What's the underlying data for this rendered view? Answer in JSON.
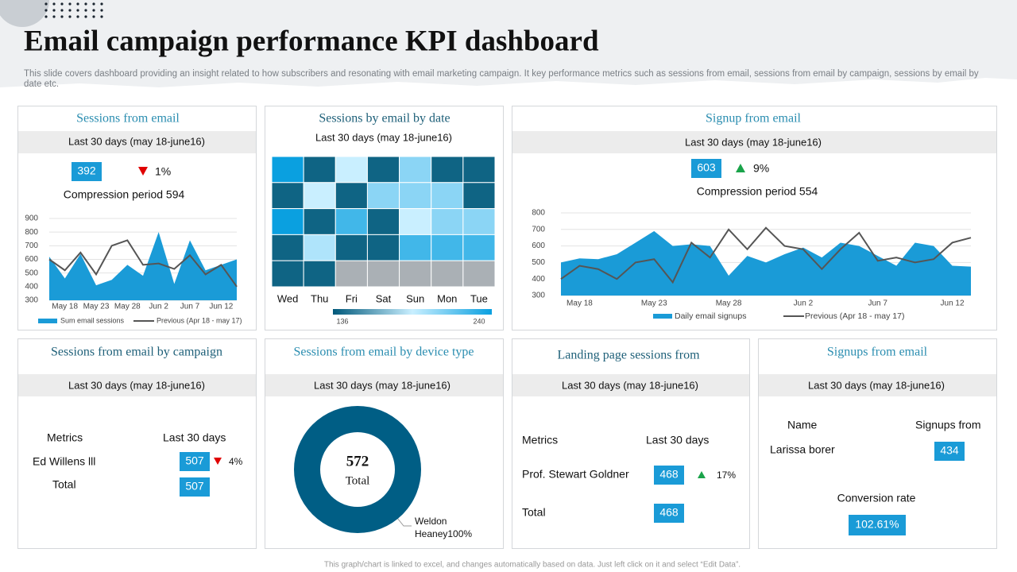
{
  "header": {
    "title": "Email campaign performance KPI dashboard",
    "subtitle": "This slide covers dashboard providing an insight related to how subscribers and resonating with email marketing campaign. It key performance metrics such as sessions from email, sessions from email by campaign, sessions by email by date etc."
  },
  "panels": [
    {
      "title": "Sessions from email",
      "period": "Last 30 days (may 18-june16)",
      "value": "392",
      "change": "1%",
      "direction": "down",
      "note": "Compression period 594",
      "chart": {
        "type": "area-line",
        "categories": [
          null,
          "May 18",
          null,
          "May 23",
          null,
          "May 28",
          null,
          "Jun 2",
          null,
          "Jun 7",
          null,
          "Jun 12",
          null
        ],
        "series": [
          {
            "name": "Sum email sessions",
            "color": "#1a9bd7",
            "kind": "area",
            "values": [
              620,
              460,
              640,
              410,
              450,
              560,
              480,
              800,
              420,
              740,
              520,
              560,
              600
            ]
          },
          {
            "name": "Previous (Apr 18 - may 17)",
            "color": "#555555",
            "kind": "line",
            "values": [
              600,
              520,
              650,
              490,
              700,
              740,
              560,
              570,
              530,
              630,
              490,
              560,
              400
            ]
          }
        ],
        "ylim": [
          300,
          900
        ],
        "yticks": [
          300,
          400,
          500,
          600,
          700,
          800,
          900
        ],
        "grid": true
      }
    },
    {
      "title": "Sessions by email by date",
      "period": "Last 30 days (may 18-june16)",
      "chart": {
        "type": "heatmap",
        "categories": [
          "Wed",
          "Thu",
          "Fri",
          "Sat",
          "Sun",
          "Mon",
          "Tue"
        ],
        "rows": [
          [
            240,
            140,
            188,
            140,
            205,
            140,
            140
          ],
          [
            140,
            188,
            140,
            205,
            205,
            205,
            140
          ],
          [
            240,
            140,
            225,
            140,
            188,
            205,
            205
          ],
          [
            140,
            195,
            140,
            140,
            225,
            225,
            225
          ],
          [
            140,
            140,
            null,
            null,
            null,
            null,
            null
          ]
        ],
        "clim": [
          136,
          240
        ],
        "colors": [
          "#00587a",
          "#c9efff",
          "#0aa0e0"
        ],
        "null_color": "#aab0b5"
      }
    },
    {
      "title": "Signup from email",
      "period": "Last 30 days (may 18-june16)",
      "value": "603",
      "change": "9%",
      "direction": "up",
      "note": "Compression period 554",
      "chart": {
        "type": "area-line",
        "categories": [
          null,
          "May 18",
          null,
          null,
          null,
          "May 23",
          null,
          null,
          null,
          "May 28",
          null,
          null,
          null,
          "Jun 2",
          null,
          null,
          null,
          "Jun 7",
          null,
          null,
          null,
          "Jun 12",
          null
        ],
        "series": [
          {
            "name": "Daily email signups",
            "color": "#1a9bd7",
            "kind": "area",
            "values": [
              500,
              525,
              520,
              550,
              620,
              690,
              600,
              610,
              600,
              420,
              540,
              500,
              550,
              590,
              530,
              620,
              600,
              540,
              480,
              620,
              600,
              480,
              475
            ]
          },
          {
            "name": "Previous (Apr 18 - may 17)",
            "color": "#555555",
            "kind": "line",
            "values": [
              400,
              480,
              460,
              400,
              500,
              520,
              380,
              620,
              530,
              700,
              580,
              710,
              600,
              580,
              460,
              580,
              680,
              510,
              530,
              500,
              520,
              620,
              650
            ]
          }
        ],
        "ylim": [
          300,
          800
        ],
        "yticks": [
          300,
          400,
          500,
          600,
          700,
          800
        ],
        "grid": true
      }
    },
    {
      "title": "Sessions from email by campaign",
      "period": "Last 30 days (may 18-june16)",
      "headers": [
        "Metrics",
        "Last 30 days"
      ],
      "rows": [
        {
          "label": "Ed Willens lll",
          "value": "507",
          "change": "4%",
          "direction": "down"
        },
        {
          "label": "Total",
          "value": "507"
        }
      ]
    },
    {
      "title": "Sessions from email by device type",
      "period": "Last 30 days (may 18-june16)",
      "chart": {
        "type": "donut",
        "total": 572,
        "total_label": "Total",
        "categories": [
          "Weldon Heaney"
        ],
        "values": [
          100
        ],
        "value_labels": [
          "100%"
        ],
        "colors": [
          "#005e85"
        ]
      }
    },
    {
      "title": "Landing page sessions from",
      "period": "Last 30 days (may 18-june16)",
      "headers": [
        "Metrics",
        "Last 30 days"
      ],
      "rows": [
        {
          "label": "Prof. Stewart Goldner",
          "value": "468",
          "change": "17%",
          "direction": "up"
        },
        {
          "label": "Total",
          "value": "468"
        }
      ]
    },
    {
      "title": "Signups from email",
      "period": "Last 30 days (may 18-june16)",
      "headers": [
        "Name",
        "Signups from"
      ],
      "rows": [
        {
          "label": "Larissa borer",
          "value": "434"
        }
      ],
      "conversion": {
        "label": "Conversion rate",
        "value": "102.61%"
      }
    }
  ],
  "footer": "This graph/chart is linked to excel, and changes automatically based on data. Just left click on it and select “Edit Data”."
}
